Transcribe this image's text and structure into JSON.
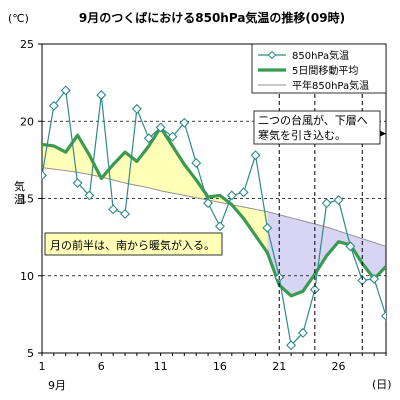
{
  "chart_data": {
    "type": "line",
    "title": "9月のつくばにおける850hPa気温の推移(09時)",
    "y_unit": "(℃)",
    "ylabel": "気温",
    "x_month_label": "9月",
    "x_unit": "(日)",
    "x": [
      1,
      2,
      3,
      4,
      5,
      6,
      7,
      8,
      9,
      10,
      11,
      12,
      13,
      14,
      15,
      16,
      17,
      18,
      19,
      20,
      21,
      22,
      23,
      24,
      25,
      26,
      27,
      28,
      29,
      30
    ],
    "xlim": [
      1,
      30
    ],
    "ylim": [
      5,
      25
    ],
    "x_ticks": [
      1,
      6,
      11,
      16,
      21,
      26
    ],
    "y_ticks": [
      5,
      10,
      15,
      20,
      25
    ],
    "grid": "horizontal dashed",
    "legend_position": "top-right",
    "series": [
      {
        "name": "850hPa気温",
        "style": "thin line with open diamond markers",
        "color": "#2e8b8b",
        "values": [
          16.5,
          21.0,
          22.0,
          16.0,
          15.2,
          21.7,
          14.3,
          14.0,
          20.8,
          18.9,
          19.6,
          19.0,
          19.9,
          17.3,
          14.7,
          13.2,
          15.2,
          15.4,
          17.8,
          13.1,
          9.9,
          5.5,
          6.3,
          9.1,
          14.7,
          14.9,
          11.9,
          9.7,
          9.8,
          7.4
        ]
      },
      {
        "name": "5日間移動平均",
        "style": "thick line",
        "color": "#3a9a50",
        "values": [
          18.5,
          18.4,
          18.0,
          19.1,
          17.8,
          16.3,
          17.2,
          18.0,
          17.4,
          18.4,
          19.6,
          18.4,
          17.2,
          16.2,
          15.1,
          15.2,
          14.6,
          13.7,
          12.6,
          11.5,
          9.4,
          8.7,
          9.0,
          10.1,
          11.3,
          12.2,
          12.0,
          10.8,
          9.8,
          10.6
        ]
      },
      {
        "name": "平年850hPa気温",
        "style": "thin line",
        "color": "#909090",
        "values": [
          17.0,
          16.9,
          16.8,
          16.7,
          16.55,
          16.4,
          16.2,
          16.0,
          15.85,
          15.7,
          15.5,
          15.35,
          15.2,
          15.05,
          14.9,
          14.75,
          14.6,
          14.45,
          14.3,
          14.15,
          13.95,
          13.75,
          13.55,
          13.35,
          13.15,
          12.9,
          12.65,
          12.4,
          12.15,
          11.9
        ]
      }
    ],
    "warm_fill_color": "#ffffb8",
    "cold_fill_color": "#d8d4f4",
    "warm_fill_range": [
      1,
      20
    ],
    "cold_fill_range": [
      20,
      30
    ],
    "typhoon_arrows": [
      [
        21,
        24
      ],
      [
        28,
        30
      ]
    ],
    "annotations": {
      "warm": "月の前半は、南から暖気が入る。",
      "typhoon": [
        "二つの台風が、下層へ",
        "寒気を引き込む。"
      ]
    }
  }
}
